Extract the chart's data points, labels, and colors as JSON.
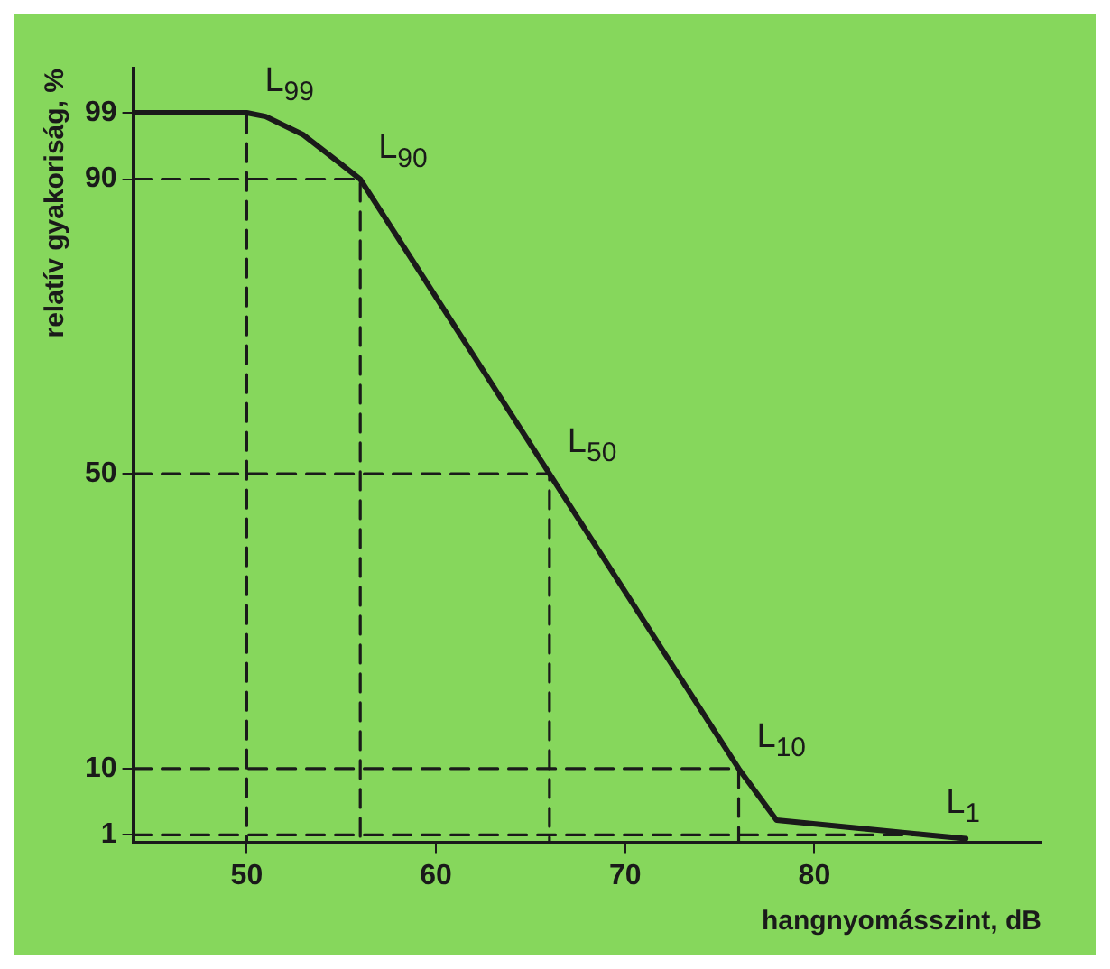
{
  "chart_data": {
    "type": "line",
    "xlabel": "hangnyomásszint, dB",
    "ylabel": "relatív gyakoriság, %",
    "xlim": [
      44,
      92
    ],
    "xticks": [
      50,
      60,
      70,
      80
    ],
    "ylim": [
      0,
      105
    ],
    "yticks": [
      1,
      10,
      50,
      90,
      99
    ],
    "grid": false,
    "legend": false,
    "marker": "none",
    "series": [
      {
        "color": "#1a1a1a",
        "line_style": "solid",
        "x": [
          44,
          48,
          50,
          51,
          53,
          55,
          56,
          66,
          76,
          78,
          82,
          86,
          88
        ],
        "values": [
          99,
          99,
          99,
          98.5,
          96,
          92,
          90,
          50,
          10,
          3,
          2,
          1,
          0.5
        ]
      },
      {
        "color": "#1a1a1a",
        "line_style": "dashed",
        "x": [
          44,
          50,
          50
        ],
        "values": [
          99,
          99,
          0
        ]
      },
      {
        "color": "#1a1a1a",
        "line_style": "dashed",
        "x": [
          44,
          56,
          56
        ],
        "values": [
          90,
          90,
          0
        ]
      },
      {
        "color": "#1a1a1a",
        "line_style": "dashed",
        "x": [
          44,
          66,
          66
        ],
        "values": [
          50,
          50,
          0
        ]
      },
      {
        "color": "#1a1a1a",
        "line_style": "dashed",
        "x": [
          44,
          76,
          76
        ],
        "values": [
          10,
          10,
          0
        ]
      },
      {
        "color": "#1a1a1a",
        "line_style": "dashed",
        "x": [
          44,
          86
        ],
        "values": [
          1,
          1
        ]
      }
    ],
    "annotations": [
      {
        "text": "L$_{99}$",
        "x": 50,
        "y": 99
      },
      {
        "text": "L$_{90}$",
        "x": 56,
        "y": 90
      },
      {
        "text": "L$_{50}$",
        "x": 66,
        "y": 50
      },
      {
        "text": "L$_{10}$",
        "x": 76,
        "y": 10
      },
      {
        "text": "L$_{1}$",
        "x": 86,
        "y": 1
      }
    ]
  }
}
